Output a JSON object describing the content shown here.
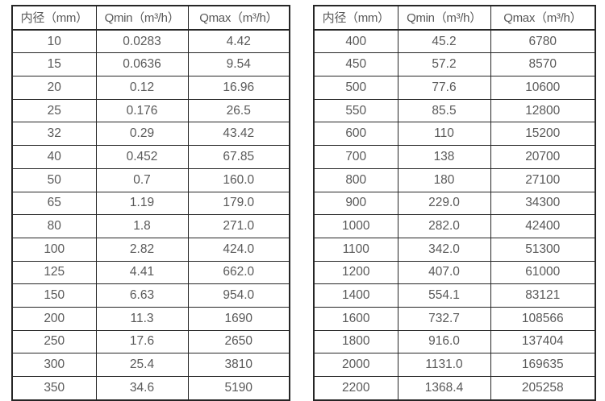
{
  "page": {
    "background_color": "#ffffff",
    "text_color": "#595959",
    "border_color": "#262626"
  },
  "tables": [
    {
      "name": "flow-rate-table-small-diameters",
      "headers": [
        "内径（mm）",
        "Qmin（m³/h）",
        "Qmax（m³/h）"
      ],
      "rows": [
        [
          "10",
          "0.0283",
          "4.42"
        ],
        [
          "15",
          "0.0636",
          "9.54"
        ],
        [
          "20",
          "0.12",
          "16.96"
        ],
        [
          "25",
          "0.176",
          "26.5"
        ],
        [
          "32",
          "0.29",
          "43.42"
        ],
        [
          "40",
          "0.452",
          "67.85"
        ],
        [
          "50",
          "0.7",
          "160.0"
        ],
        [
          "65",
          "1.19",
          "179.0"
        ],
        [
          "80",
          "1.8",
          "271.0"
        ],
        [
          "100",
          "2.82",
          "424.0"
        ],
        [
          "125",
          "4.41",
          "662.0"
        ],
        [
          "150",
          "6.63",
          "954.0"
        ],
        [
          "200",
          "11.3",
          "1690"
        ],
        [
          "250",
          "17.6",
          "2650"
        ],
        [
          "300",
          "25.4",
          "3810"
        ],
        [
          "350",
          "34.6",
          "5190"
        ]
      ]
    },
    {
      "name": "flow-rate-table-large-diameters",
      "headers": [
        "内径（mm）",
        "Qmin（m³/h）",
        "Qmax（m³/h）"
      ],
      "rows": [
        [
          "400",
          "45.2",
          "6780"
        ],
        [
          "450",
          "57.2",
          "8570"
        ],
        [
          "500",
          "77.6",
          "10600"
        ],
        [
          "550",
          "85.5",
          "12800"
        ],
        [
          "600",
          "110",
          "15200"
        ],
        [
          "700",
          "138",
          "20700"
        ],
        [
          "800",
          "180",
          "27100"
        ],
        [
          "900",
          "229.0",
          "34300"
        ],
        [
          "1000",
          "282.0",
          "42400"
        ],
        [
          "1100",
          "342.0",
          "51300"
        ],
        [
          "1200",
          "407.0",
          "61000"
        ],
        [
          "1400",
          "554.1",
          "83121"
        ],
        [
          "1600",
          "732.7",
          "108566"
        ],
        [
          "1800",
          "916.0",
          "137404"
        ],
        [
          "2000",
          "1131.0",
          "169635"
        ],
        [
          "2200",
          "1368.4",
          "205258"
        ]
      ]
    }
  ]
}
